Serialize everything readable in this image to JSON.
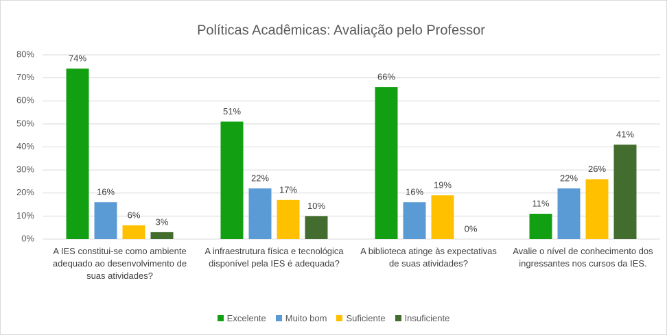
{
  "chart_data": {
    "type": "bar",
    "title": "Políticas Acadêmicas: Avaliação pelo Professor",
    "categories": [
      "A IES constitui-se como ambiente adequado ao desenvolvimento de suas atividades?",
      "A infraestrutura física e tecnológica disponível pela IES é adequada?",
      "A biblioteca atinge às expectativas de suas atividades?",
      "Avalie o nível de conhecimento dos ingressantes nos cursos da IES."
    ],
    "series": [
      {
        "name": "Excelente",
        "color": "#12a012",
        "values": [
          74,
          51,
          66,
          11
        ],
        "value_labels": [
          "74%",
          "51%",
          "66%",
          "11%"
        ]
      },
      {
        "name": "Muito bom",
        "color": "#5b9bd5",
        "values": [
          16,
          22,
          16,
          22
        ],
        "value_labels": [
          "16%",
          "22%",
          "16%",
          "22%"
        ]
      },
      {
        "name": "Suficiente",
        "color": "#ffc000",
        "values": [
          6,
          17,
          19,
          26
        ],
        "value_labels": [
          "6%",
          "17%",
          "19%",
          "26%"
        ]
      },
      {
        "name": "Insuficiente",
        "color": "#436d2e",
        "values": [
          3,
          10,
          0,
          41
        ],
        "value_labels": [
          "3%",
          "10%",
          "0%",
          "41%"
        ]
      }
    ],
    "ylim": [
      0,
      80
    ],
    "yticks": [
      {
        "value": 0,
        "label": "0%"
      },
      {
        "value": 10,
        "label": "10%"
      },
      {
        "value": 20,
        "label": "20%"
      },
      {
        "value": 30,
        "label": "30%"
      },
      {
        "value": 40,
        "label": "40%"
      },
      {
        "value": 50,
        "label": "50%"
      },
      {
        "value": 60,
        "label": "60%"
      },
      {
        "value": 70,
        "label": "70%"
      },
      {
        "value": 80,
        "label": "80%"
      }
    ],
    "grid": true,
    "legend": "bottom"
  }
}
